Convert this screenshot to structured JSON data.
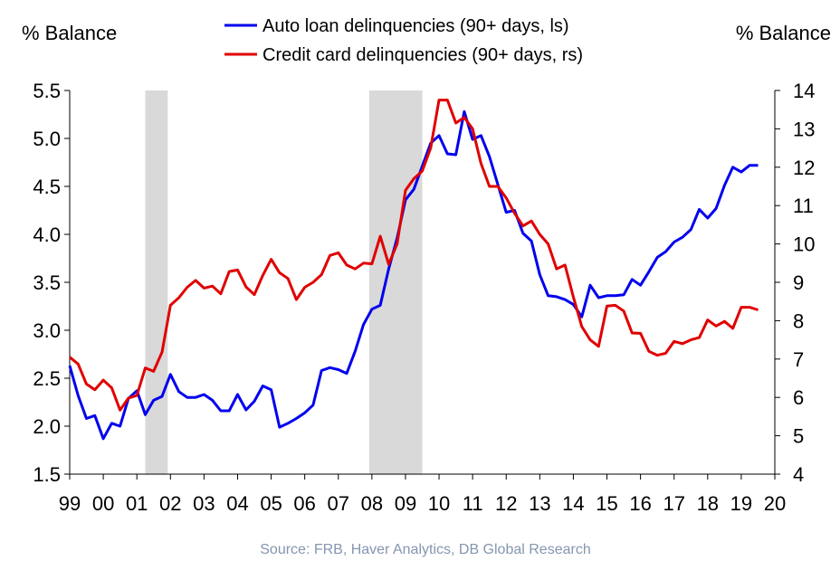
{
  "chart_data": {
    "type": "line",
    "left_axis_title": "% Balance",
    "right_axis_title": "% Balance",
    "source": "Source: FRB, Haver Analytics, DB Global Research",
    "x_tick_labels": [
      "99",
      "00",
      "01",
      "02",
      "03",
      "04",
      "05",
      "06",
      "07",
      "08",
      "09",
      "10",
      "11",
      "12",
      "13",
      "14",
      "15",
      "16",
      "17",
      "18",
      "19",
      "20"
    ],
    "xlim": [
      1999,
      2020
    ],
    "ylim_left": [
      1.5,
      5.5
    ],
    "ylim_right": [
      4,
      14
    ],
    "y_ticks_left": [
      "1.5",
      "2.0",
      "2.5",
      "3.0",
      "3.5",
      "4.0",
      "4.5",
      "5.0",
      "5.5"
    ],
    "y_ticks_right": [
      "4",
      "5",
      "6",
      "7",
      "8",
      "9",
      "10",
      "11",
      "12",
      "13",
      "14"
    ],
    "recessions": [
      [
        2001.25,
        2001.92
      ],
      [
        2007.92,
        2009.5
      ]
    ],
    "grid": false,
    "legend_position": "top-center",
    "series": [
      {
        "name": "Auto loan delinquencies (90+ days, ls)",
        "axis": "left",
        "color": "#0000ee",
        "x": [
          1999.0,
          1999.25,
          1999.5,
          1999.75,
          2000.0,
          2000.25,
          2000.5,
          2000.75,
          2001.0,
          2001.25,
          2001.5,
          2001.75,
          2002.0,
          2002.25,
          2002.5,
          2002.75,
          2003.0,
          2003.25,
          2003.5,
          2003.75,
          2004.0,
          2004.25,
          2004.5,
          2004.75,
          2005.0,
          2005.25,
          2005.5,
          2005.75,
          2006.0,
          2006.25,
          2006.5,
          2006.75,
          2007.0,
          2007.25,
          2007.5,
          2007.75,
          2008.0,
          2008.25,
          2008.5,
          2008.75,
          2009.0,
          2009.25,
          2009.5,
          2009.75,
          2010.0,
          2010.25,
          2010.5,
          2010.75,
          2011.0,
          2011.25,
          2011.5,
          2011.75,
          2012.0,
          2012.25,
          2012.5,
          2012.75,
          2013.0,
          2013.25,
          2013.5,
          2013.75,
          2014.0,
          2014.25,
          2014.5,
          2014.75,
          2015.0,
          2015.25,
          2015.5,
          2015.75,
          2016.0,
          2016.25,
          2016.5,
          2016.75,
          2017.0,
          2017.25,
          2017.5,
          2017.75,
          2018.0,
          2018.25,
          2018.5,
          2018.75,
          2019.0,
          2019.25,
          2019.5
        ],
        "values": [
          2.63,
          2.32,
          2.08,
          2.11,
          1.87,
          2.03,
          2.0,
          2.29,
          2.37,
          2.12,
          2.27,
          2.31,
          2.54,
          2.36,
          2.3,
          2.3,
          2.33,
          2.27,
          2.16,
          2.16,
          2.33,
          2.17,
          2.26,
          2.42,
          2.38,
          1.99,
          2.03,
          2.08,
          2.14,
          2.22,
          2.58,
          2.61,
          2.59,
          2.55,
          2.78,
          3.06,
          3.22,
          3.26,
          3.64,
          3.96,
          4.36,
          4.47,
          4.71,
          4.95,
          5.03,
          4.84,
          4.83,
          5.28,
          4.99,
          5.03,
          4.81,
          4.52,
          4.23,
          4.25,
          4.01,
          3.93,
          3.58,
          3.36,
          3.35,
          3.32,
          3.27,
          3.14,
          3.47,
          3.34,
          3.36,
          3.36,
          3.37,
          3.53,
          3.47,
          3.61,
          3.76,
          3.82,
          3.92,
          3.97,
          4.05,
          4.26,
          4.17,
          4.27,
          4.51,
          4.7,
          4.65,
          4.72,
          4.72
        ]
      },
      {
        "name": "Credit card delinquencies (90+ days, rs)",
        "axis": "right",
        "color": "#e00000",
        "x": [
          1999.0,
          1999.25,
          1999.5,
          1999.75,
          2000.0,
          2000.25,
          2000.5,
          2000.75,
          2001.0,
          2001.25,
          2001.5,
          2001.75,
          2002.0,
          2002.25,
          2002.5,
          2002.75,
          2003.0,
          2003.25,
          2003.5,
          2003.75,
          2004.0,
          2004.25,
          2004.5,
          2004.75,
          2005.0,
          2005.25,
          2005.5,
          2005.75,
          2006.0,
          2006.25,
          2006.5,
          2006.75,
          2007.0,
          2007.25,
          2007.5,
          2007.75,
          2008.0,
          2008.25,
          2008.5,
          2008.75,
          2009.0,
          2009.25,
          2009.5,
          2009.75,
          2010.0,
          2010.25,
          2010.5,
          2010.75,
          2011.0,
          2011.25,
          2011.5,
          2011.75,
          2012.0,
          2012.25,
          2012.5,
          2012.75,
          2013.0,
          2013.25,
          2013.5,
          2013.75,
          2014.0,
          2014.25,
          2014.5,
          2014.75,
          2015.0,
          2015.25,
          2015.5,
          2015.75,
          2016.0,
          2016.25,
          2016.5,
          2016.75,
          2017.0,
          2017.25,
          2017.5,
          2017.75,
          2018.0,
          2018.25,
          2018.5,
          2018.75,
          2019.0,
          2019.25,
          2019.5
        ],
        "values": [
          7.05,
          6.87,
          6.35,
          6.2,
          6.45,
          6.25,
          5.67,
          5.98,
          6.05,
          6.77,
          6.68,
          7.18,
          8.4,
          8.6,
          8.87,
          9.05,
          8.85,
          8.9,
          8.7,
          9.28,
          9.32,
          8.88,
          8.68,
          9.18,
          9.6,
          9.25,
          9.1,
          8.55,
          8.87,
          9.0,
          9.2,
          9.7,
          9.77,
          9.45,
          9.35,
          9.5,
          9.48,
          10.2,
          9.47,
          10.0,
          11.4,
          11.7,
          11.9,
          12.5,
          13.75,
          13.75,
          13.15,
          13.3,
          13.0,
          12.1,
          11.5,
          11.5,
          11.2,
          10.8,
          10.47,
          10.6,
          10.25,
          10.0,
          9.35,
          9.45,
          8.62,
          7.85,
          7.5,
          7.33,
          8.38,
          8.4,
          8.25,
          7.68,
          7.67,
          7.2,
          7.1,
          7.15,
          7.46,
          7.4,
          7.5,
          7.56,
          8.02,
          7.86,
          7.98,
          7.8,
          8.35,
          8.35,
          8.28
        ]
      }
    ]
  }
}
